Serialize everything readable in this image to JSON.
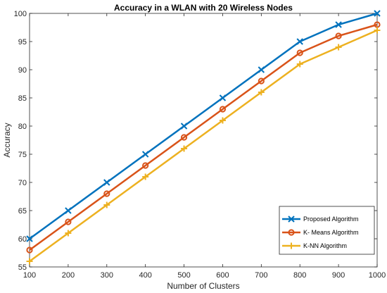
{
  "chart_data": {
    "type": "line",
    "title": "Accuracy in a WLAN with 20 Wireless Nodes",
    "xlabel": "Number of Clusters",
    "ylabel": "Accuracy",
    "x": [
      100,
      200,
      300,
      400,
      500,
      600,
      700,
      800,
      900,
      1000
    ],
    "xlim": [
      100,
      1000
    ],
    "ylim": [
      55,
      100
    ],
    "xticks": [
      "100",
      "200",
      "300",
      "400",
      "500",
      "600",
      "700",
      "800",
      "900",
      "1000"
    ],
    "yticks": [
      "55",
      "60",
      "65",
      "70",
      "75",
      "80",
      "85",
      "90",
      "95",
      "100"
    ],
    "grid": false,
    "legend_position": "bottom-right",
    "series": [
      {
        "name": "Proposed Algorithm",
        "values": [
          60,
          65,
          70,
          75,
          80,
          85,
          90,
          95,
          98,
          100
        ],
        "color": "#0072BD",
        "marker": "x"
      },
      {
        "name": "K- Means Algorithm",
        "values": [
          58,
          63,
          68,
          73,
          78,
          83,
          88,
          93,
          96,
          98
        ],
        "color": "#D95319",
        "marker": "o"
      },
      {
        "name": "K-NN Algorithm",
        "values": [
          56,
          61,
          66,
          71,
          76,
          81,
          86,
          91,
          94,
          97
        ],
        "color": "#EDB120",
        "marker": "+"
      }
    ]
  }
}
